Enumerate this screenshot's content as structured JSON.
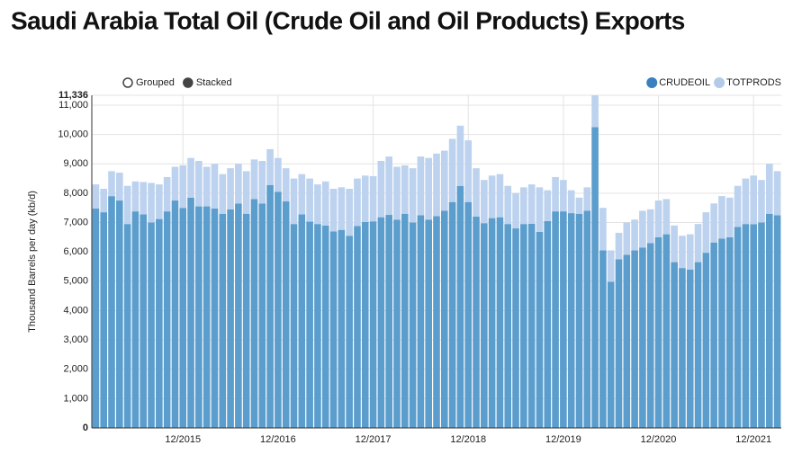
{
  "chart_data": {
    "type": "stacked_bar",
    "title": "Saudi Arabia Total Oil (Crude Oil and Oil Products) Exports",
    "y_label": "Thousand Barrels per day (kb/d)",
    "modes": [
      "Grouped",
      "Stacked"
    ],
    "selected_mode": 1,
    "categories": [
      null,
      null,
      null,
      null,
      null,
      null,
      null,
      null,
      null,
      null,
      null,
      "12/2015",
      null,
      null,
      null,
      null,
      null,
      null,
      null,
      null,
      null,
      null,
      null,
      "12/2016",
      null,
      null,
      null,
      null,
      null,
      null,
      null,
      null,
      null,
      null,
      null,
      "12/2017",
      null,
      null,
      null,
      null,
      null,
      null,
      null,
      null,
      null,
      null,
      null,
      "12/2018",
      null,
      null,
      null,
      null,
      null,
      null,
      null,
      null,
      null,
      null,
      null,
      "12/2019",
      null,
      null,
      null,
      null,
      null,
      null,
      null,
      null,
      null,
      null,
      null,
      "12/2020",
      null,
      null,
      null,
      null,
      null,
      null,
      null,
      null,
      null,
      null,
      null,
      "12/2021",
      null,
      null,
      null
    ],
    "series": [
      {
        "name": "CRUDEOIL",
        "color": "#5b9dcc",
        "legend_color": "#3a7fbf",
        "values": [
          7480,
          7350,
          7900,
          7750,
          6950,
          7380,
          7280,
          7000,
          7120,
          7380,
          7750,
          7500,
          7850,
          7550,
          7550,
          7480,
          7300,
          7450,
          7650,
          7300,
          7800,
          7650,
          8280,
          8050,
          7720,
          6950,
          7280,
          7030,
          6950,
          6900,
          6700,
          6750,
          6550,
          6880,
          7020,
          7040,
          7180,
          7260,
          7100,
          7300,
          7000,
          7250,
          7100,
          7220,
          7400,
          7700,
          8250,
          7700,
          7200,
          6980,
          7150,
          7180,
          6950,
          6800,
          6950,
          6960,
          6680,
          7050,
          7380,
          7380,
          7320,
          7300,
          7400,
          10250,
          6050,
          4980,
          5750,
          5900,
          6050,
          6150,
          6300,
          6500,
          6600,
          5650,
          5450,
          5400,
          5650,
          5970,
          6320,
          6450,
          6500,
          6850,
          6950,
          6940,
          7000,
          7300,
          7250
        ]
      },
      {
        "name": "TOTPRODS",
        "color": "#bcd2ee",
        "legend_color": "#b3cbe9",
        "values": [
          820,
          800,
          850,
          950,
          1300,
          1020,
          1100,
          1350,
          1180,
          1170,
          1150,
          1450,
          1350,
          1550,
          1350,
          1520,
          1350,
          1400,
          1350,
          1450,
          1350,
          1450,
          1220,
          1150,
          1130,
          1550,
          1370,
          1470,
          1350,
          1500,
          1450,
          1450,
          1600,
          1620,
          1580,
          1540,
          1920,
          1990,
          1800,
          1650,
          1850,
          2000,
          2100,
          2130,
          2050,
          2150,
          2050,
          2100,
          1650,
          1470,
          1450,
          1470,
          1300,
          1200,
          1250,
          1340,
          1520,
          1050,
          1170,
          1070,
          780,
          550,
          800,
          1086,
          1450,
          1070,
          900,
          1100,
          1050,
          1250,
          1150,
          1250,
          1200,
          1250,
          1100,
          1200,
          1300,
          1380,
          1330,
          1450,
          1350,
          1400,
          1550,
          1660,
          1450,
          1700,
          1500
        ]
      }
    ],
    "ylim": [
      0,
      11336
    ],
    "yticks": [
      0,
      {
        "value": 1000,
        "label": "1,000"
      },
      {
        "value": 2000,
        "label": "2,000"
      },
      {
        "value": 3000,
        "label": "3,000"
      },
      {
        "value": 4000,
        "label": "4,000"
      },
      {
        "value": 5000,
        "label": "5,000"
      },
      {
        "value": 6000,
        "label": "6,000"
      },
      {
        "value": 7000,
        "label": "7,000"
      },
      {
        "value": 8000,
        "label": "8,000"
      },
      {
        "value": 9000,
        "label": "9,000"
      },
      {
        "value": 10000,
        "label": "10,000"
      },
      {
        "value": 11000,
        "label": "11,000"
      },
      {
        "value": 11336,
        "label": "11,336"
      }
    ],
    "grid": true,
    "legend": "top-right"
  }
}
